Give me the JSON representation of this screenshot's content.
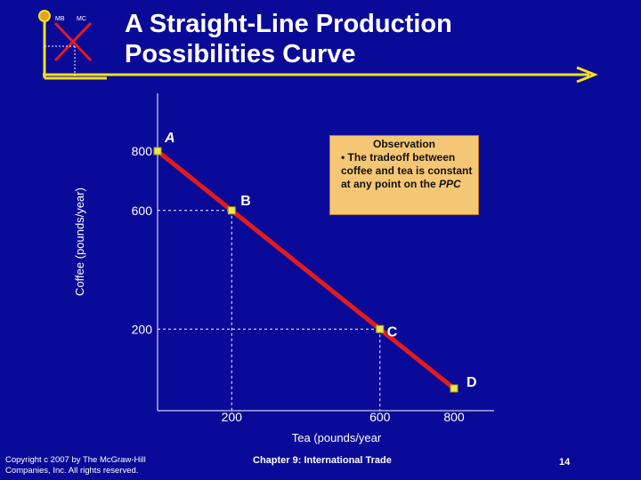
{
  "slide": {
    "title_line1": "A Straight-Line Production",
    "title_line2": "Possibilities Curve",
    "logo": {
      "left_text": "MB",
      "right_text": "MC"
    },
    "observation": {
      "heading": "Observation",
      "body_prefix": "• The tradeoff between coffee and tea is constant at any point on the ",
      "body_emph": "PPC"
    },
    "footer": {
      "copyright_line1": "Copyright c 2007 by The McGraw-Hill",
      "copyright_line2": "Companies, Inc. All rights reserved.",
      "chapter": "Chapter 9: International Trade",
      "page": "14"
    }
  },
  "colors": {
    "background": "#0a0a98",
    "line": "#e31b1b",
    "point": "#e8e850",
    "accent_yellow": "#f0e020",
    "guide": "#ffffff",
    "observation_box": "#f5c774"
  },
  "chart_data": {
    "type": "line",
    "xlabel": "Tea (pounds/year",
    "ylabel": "Coffee (pounds/year)",
    "x_ticks": [
      {
        "value": 200,
        "label": "200"
      },
      {
        "value": 600,
        "label": "600"
      },
      {
        "value": 800,
        "label": "800"
      }
    ],
    "y_ticks": [
      {
        "value": 800,
        "label": "800"
      },
      {
        "value": 600,
        "label": "600"
      },
      {
        "value": 200,
        "label": "200"
      }
    ],
    "xlim": [
      0,
      800
    ],
    "ylim": [
      0,
      800
    ],
    "series": [
      {
        "points": [
          {
            "label": "A",
            "x": 0,
            "y": 800
          },
          {
            "label": "B",
            "x": 200,
            "y": 600
          },
          {
            "label": "C",
            "x": 600,
            "y": 200
          },
          {
            "label": "D",
            "x": 800,
            "y": 0
          }
        ]
      }
    ],
    "guides": [
      {
        "point": "B",
        "x": 200,
        "y": 600
      },
      {
        "point": "C",
        "x": 600,
        "y": 200
      }
    ]
  }
}
